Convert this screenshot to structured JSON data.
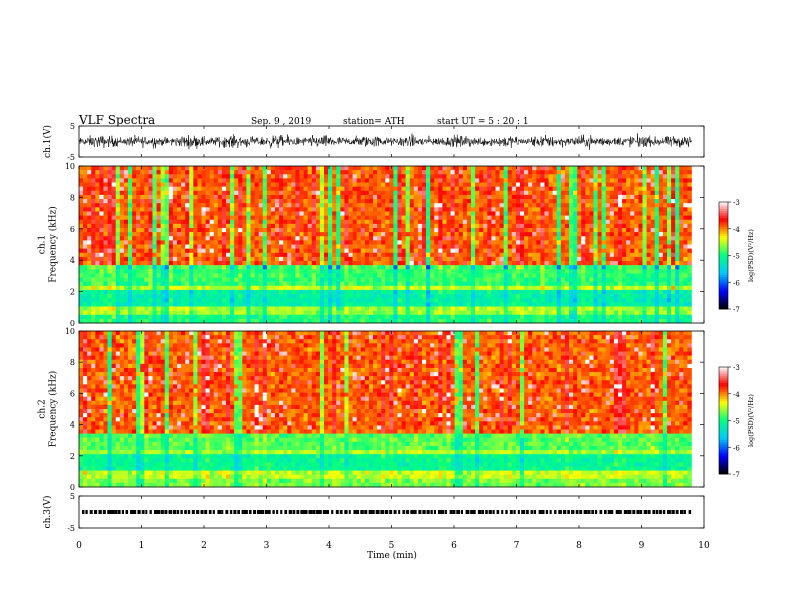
{
  "header": {
    "title": "VLF  Spectra",
    "date": "Sep. 9  , 2019",
    "station": "station= ATH",
    "start": "start  UT  =    5  : 20 : 1"
  },
  "chart_data": [
    {
      "type": "line",
      "name": "ch1-waveform",
      "ylabel": "ch.1(V)",
      "xlim": [
        0,
        10
      ],
      "ylim": [
        -5,
        5
      ],
      "yticks": [
        "5",
        "-5"
      ],
      "data_end_min": 9.8,
      "amplitude_approx": 2.5
    },
    {
      "type": "heatmap",
      "name": "ch1-spectrogram",
      "ylabel": "ch.1\nFrequency  (kHz)",
      "xlim": [
        0,
        10
      ],
      "ylim": [
        0,
        10
      ],
      "yticks": [
        "0",
        "2",
        "4",
        "6",
        "8",
        "10"
      ],
      "data_end_min": 9.8,
      "colorbar": {
        "label": "log(PSD)(V²/Hz)",
        "range": [
          -7,
          -3
        ],
        "ticks": [
          "-3",
          "-4",
          "-5",
          "-6",
          "-7"
        ]
      },
      "bands_khz": [
        {
          "from": 0.0,
          "to": 0.5,
          "level": -5.0
        },
        {
          "from": 0.5,
          "to": 1.0,
          "level": -4.6
        },
        {
          "from": 1.0,
          "to": 2.0,
          "level": -5.2
        },
        {
          "from": 2.0,
          "to": 2.5,
          "level": -4.5
        },
        {
          "from": 2.5,
          "to": 3.7,
          "level": -4.9
        },
        {
          "from": 3.7,
          "to": 10.0,
          "level": -3.9
        }
      ]
    },
    {
      "type": "heatmap",
      "name": "ch2-spectrogram",
      "ylabel": "ch.2\nFrequency  (kHz)",
      "xlim": [
        0,
        10
      ],
      "ylim": [
        0,
        10
      ],
      "yticks": [
        "0",
        "2",
        "4",
        "6",
        "8",
        "10"
      ],
      "data_end_min": 9.8,
      "colorbar": {
        "label": "log(PSD)(V²/Hz)",
        "range": [
          -7,
          -3
        ],
        "ticks": [
          "-3",
          "-4",
          "-5",
          "-6",
          "-7"
        ]
      },
      "bands_khz": [
        {
          "from": 0.0,
          "to": 0.5,
          "level": -4.7
        },
        {
          "from": 0.5,
          "to": 1.0,
          "level": -4.5
        },
        {
          "from": 1.0,
          "to": 2.0,
          "level": -5.1
        },
        {
          "from": 2.0,
          "to": 2.5,
          "level": -4.6
        },
        {
          "from": 2.5,
          "to": 3.5,
          "level": -4.8
        },
        {
          "from": 3.5,
          "to": 10.0,
          "level": -3.9
        }
      ]
    },
    {
      "type": "line",
      "name": "ch3-waveform",
      "ylabel": "ch.3(V)",
      "xlim": [
        0,
        10
      ],
      "ylim": [
        -5,
        5
      ],
      "yticks": [
        "5",
        "-5"
      ],
      "data_end_min": 9.8,
      "level_v": 0
    }
  ],
  "xaxis": {
    "label": "Time  (min)",
    "ticks": [
      "0",
      "1",
      "2",
      "3",
      "4",
      "5",
      "6",
      "7",
      "8",
      "9",
      "10"
    ]
  },
  "colormap": [
    "#000000",
    "#0000ff",
    "#00c8ff",
    "#00ff80",
    "#ffff00",
    "#ff0000",
    "#ffffff"
  ]
}
